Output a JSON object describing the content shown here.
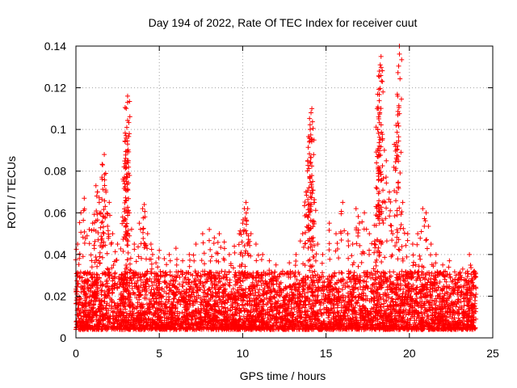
{
  "chart_data": {
    "type": "scatter",
    "title": "Day 194 of 2022, Rate Of TEC Index for receiver cuut",
    "xlabel": "GPS time / hours",
    "ylabel": "ROTI / TECUs",
    "xlim": [
      0,
      25
    ],
    "ylim": [
      0,
      0.14
    ],
    "xticks": [
      0,
      5,
      10,
      15,
      20,
      25
    ],
    "xtick_labels": [
      "0",
      "5",
      "10",
      "15",
      "20",
      "25"
    ],
    "yticks": [
      0,
      0.02,
      0.04,
      0.06,
      0.08,
      0.1,
      0.12,
      0.14
    ],
    "ytick_labels": [
      "0",
      "0.02",
      "0.04",
      "0.06",
      "0.08",
      "0.1",
      "0.12",
      "0.14"
    ],
    "grid": true,
    "marker": "+",
    "marker_color": "#ff0000",
    "series": [
      {
        "name": "ROTI",
        "x": [
          0.1,
          0.3,
          0.5,
          0.8,
          1.0,
          1.2,
          1.3,
          1.4,
          1.5,
          1.6,
          1.7,
          1.8,
          2.0,
          2.2,
          2.5,
          2.8,
          2.9,
          3.0,
          3.05,
          3.1,
          3.1,
          3.1,
          3.2,
          3.5,
          3.8,
          4.0,
          4.1,
          4.3,
          4.5,
          4.6,
          4.8,
          5.0,
          5.3,
          5.6,
          6.0,
          6.4,
          6.8,
          7.2,
          7.6,
          8.0,
          8.3,
          8.6,
          8.9,
          9.2,
          9.5,
          9.8,
          10.0,
          10.1,
          10.2,
          10.3,
          10.5,
          10.8,
          11.2,
          11.6,
          12.0,
          12.4,
          12.8,
          13.2,
          13.6,
          13.8,
          13.9,
          14.0,
          14.05,
          14.1,
          14.15,
          14.2,
          14.3,
          14.5,
          14.8,
          15.2,
          15.6,
          16.0,
          16.3,
          16.6,
          16.8,
          17.0,
          17.3,
          17.6,
          17.9,
          18.0,
          18.1,
          18.15,
          18.2,
          18.25,
          18.3,
          18.5,
          18.8,
          19.0,
          19.2,
          19.3,
          19.4,
          19.6,
          19.9,
          20.2,
          20.5,
          20.8,
          21.0,
          21.3,
          21.6,
          22.0,
          22.4,
          22.8,
          23.2,
          23.6,
          23.9
        ],
        "y": [
          0.045,
          0.06,
          0.067,
          0.052,
          0.055,
          0.073,
          0.07,
          0.065,
          0.06,
          0.083,
          0.088,
          0.07,
          0.065,
          0.05,
          0.045,
          0.058,
          0.082,
          0.097,
          0.101,
          0.113,
          0.116,
          0.093,
          0.06,
          0.045,
          0.055,
          0.062,
          0.064,
          0.05,
          0.045,
          0.04,
          0.036,
          0.042,
          0.038,
          0.04,
          0.043,
          0.037,
          0.04,
          0.045,
          0.05,
          0.052,
          0.048,
          0.05,
          0.046,
          0.04,
          0.044,
          0.05,
          0.055,
          0.062,
          0.065,
          0.062,
          0.05,
          0.045,
          0.04,
          0.037,
          0.035,
          0.032,
          0.036,
          0.04,
          0.05,
          0.07,
          0.085,
          0.094,
          0.1,
          0.108,
          0.11,
          0.075,
          0.065,
          0.045,
          0.04,
          0.055,
          0.05,
          0.065,
          0.05,
          0.045,
          0.062,
          0.055,
          0.06,
          0.05,
          0.045,
          0.063,
          0.1,
          0.106,
          0.128,
          0.131,
          0.135,
          0.09,
          0.07,
          0.05,
          0.102,
          0.116,
          0.14,
          0.065,
          0.05,
          0.045,
          0.05,
          0.062,
          0.06,
          0.045,
          0.04,
          0.035,
          0.037,
          0.03,
          0.033,
          0.04,
          0.032
        ]
      }
    ],
    "dense_band": {
      "description_values": "baseline ROTI between 0.005 and 0.03 TECUs from 0 to 24 h",
      "x_range": [
        0,
        24
      ],
      "y_range": [
        0.004,
        0.032
      ]
    }
  }
}
